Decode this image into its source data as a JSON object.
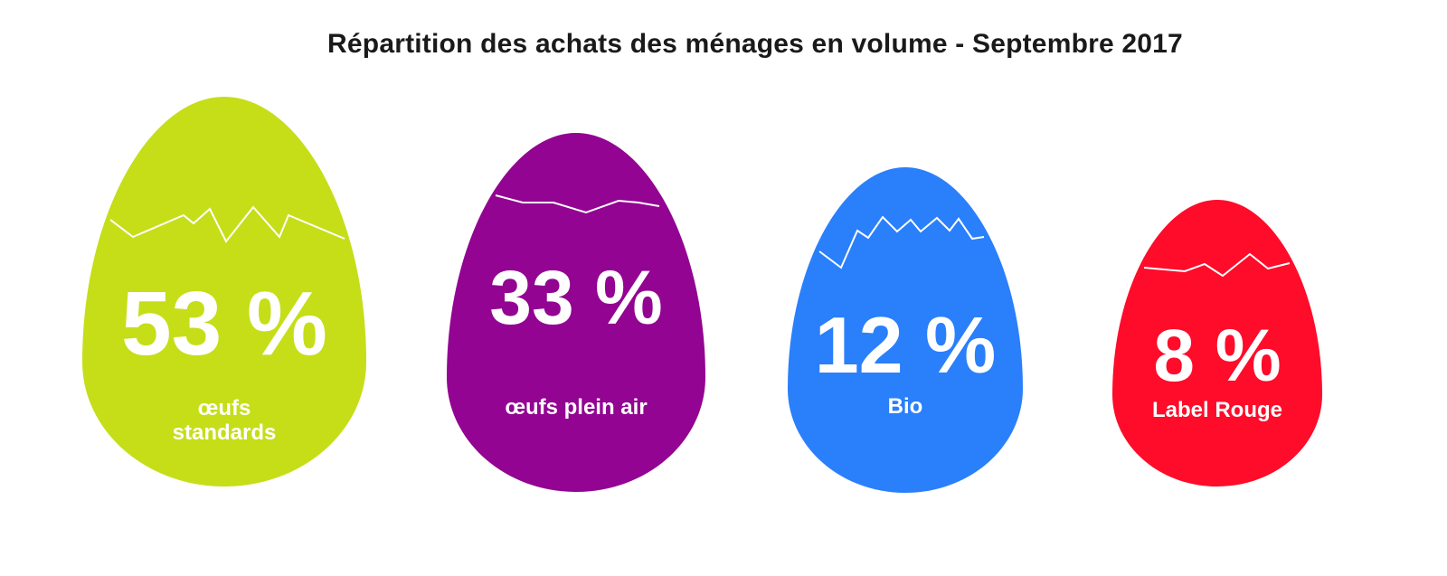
{
  "chart_data": {
    "type": "pie",
    "title": "Répartition des achats des ménages en volume - Septembre 2017",
    "unit": "%",
    "categories": [
      "œufs standards",
      "œufs plein air",
      "Bio",
      "Label Rouge"
    ],
    "values": [
      53,
      33,
      12,
      8
    ],
    "value_labels": [
      "53 %",
      "33 %",
      "12 %",
      "8 %"
    ],
    "label_lines": [
      [
        "œufs",
        "standards"
      ],
      [
        "œufs plein air"
      ],
      [
        "Bio"
      ],
      [
        "Label Rouge"
      ]
    ],
    "colors": [
      "#c5de18",
      "#920491",
      "#2a7ffb",
      "#fe0c2a"
    ]
  }
}
